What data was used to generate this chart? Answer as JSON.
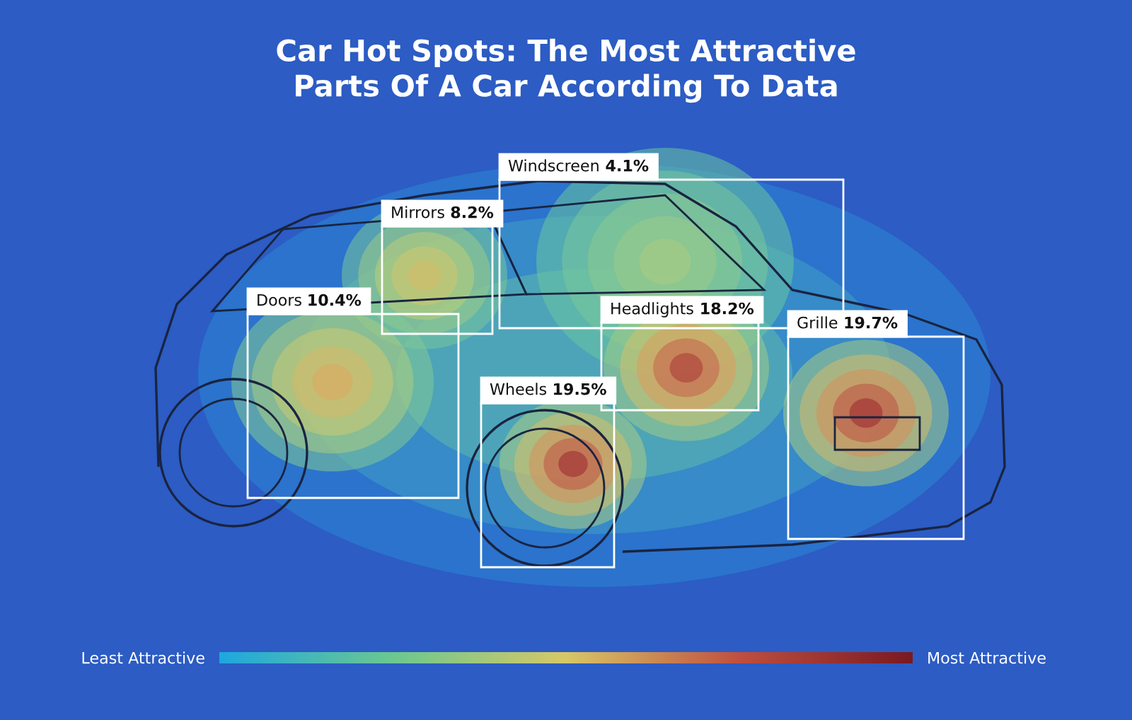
{
  "chart_data": {
    "type": "other",
    "title": "Car Hot Spots: The Most Attractive Parts Of A Car According To Data",
    "categories": [
      "Windscreen",
      "Mirrors",
      "Doors",
      "Headlights",
      "Grille",
      "Wheels"
    ],
    "values": [
      4.1,
      8.2,
      10.4,
      18.2,
      19.7,
      19.5
    ],
    "value_labels": [
      "4.1%",
      "8.2%",
      "10.4%",
      "18.2%",
      "19.7%",
      "19.5%"
    ],
    "annotations": [
      "Least Attractive",
      "Most Attractive"
    ]
  }
}
